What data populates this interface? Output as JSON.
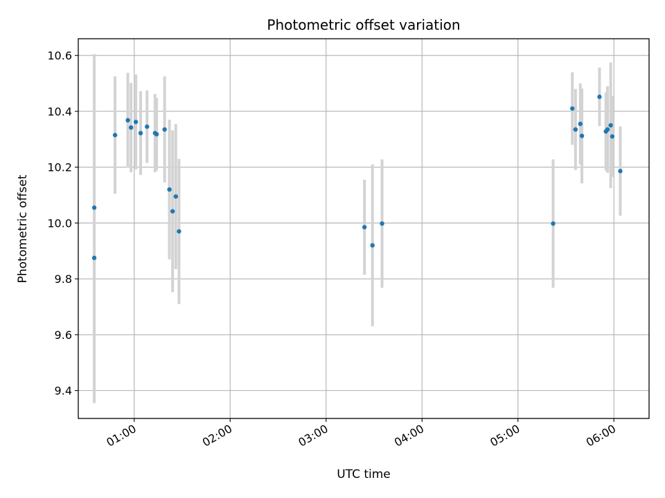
{
  "chart_data": {
    "type": "scatter",
    "title": "Photometric offset variation",
    "xlabel": "UTC time",
    "ylabel": "Photometric offset",
    "x_tick_labels": [
      "01:00",
      "02:00",
      "03:00",
      "04:00",
      "05:00",
      "06:00"
    ],
    "y_tick_labels": [
      "9.4",
      "9.6",
      "9.8",
      "10.0",
      "10.2",
      "10.4",
      "10.6"
    ],
    "x_ticks": [
      "01:00",
      "02:00",
      "03:00",
      "04:00",
      "05:00",
      "06:00"
    ],
    "y_ticks": [
      9.4,
      9.6,
      9.8,
      10.0,
      10.2,
      10.4,
      10.6
    ],
    "xlim": [
      "00:25",
      "06:22"
    ],
    "ylim": [
      9.3,
      10.66
    ],
    "grid": true,
    "marker_color": "#1f77b4",
    "errorbar_color": "#d3d3d3",
    "points": [
      {
        "x": "00:35",
        "y": 10.055,
        "err": 0.55
      },
      {
        "x": "00:35",
        "y": 9.875,
        "err": 0.52
      },
      {
        "x": "00:48",
        "y": 10.315,
        "err": 0.21
      },
      {
        "x": "00:56",
        "y": 10.368,
        "err": 0.17
      },
      {
        "x": "00:58",
        "y": 10.342,
        "err": 0.16
      },
      {
        "x": "01:01",
        "y": 10.362,
        "err": 0.17
      },
      {
        "x": "01:04",
        "y": 10.322,
        "err": 0.15
      },
      {
        "x": "01:08",
        "y": 10.345,
        "err": 0.13
      },
      {
        "x": "01:13",
        "y": 10.322,
        "err": 0.14
      },
      {
        "x": "01:14",
        "y": 10.318,
        "err": 0.13
      },
      {
        "x": "01:19",
        "y": 10.335,
        "err": 0.19
      },
      {
        "x": "01:22",
        "y": 10.12,
        "err": 0.25
      },
      {
        "x": "01:24",
        "y": 10.042,
        "err": 0.29
      },
      {
        "x": "01:26",
        "y": 10.095,
        "err": 0.26
      },
      {
        "x": "01:28",
        "y": 9.97,
        "err": 0.26
      },
      {
        "x": "03:24",
        "y": 9.985,
        "err": 0.17
      },
      {
        "x": "03:29",
        "y": 9.92,
        "err": 0.29
      },
      {
        "x": "03:35",
        "y": 9.998,
        "err": 0.23
      },
      {
        "x": "05:22",
        "y": 9.998,
        "err": 0.23
      },
      {
        "x": "05:34",
        "y": 10.41,
        "err": 0.13
      },
      {
        "x": "05:36",
        "y": 10.335,
        "err": 0.145
      },
      {
        "x": "05:39",
        "y": 10.355,
        "err": 0.145
      },
      {
        "x": "05:40",
        "y": 10.312,
        "err": 0.17
      },
      {
        "x": "05:51",
        "y": 10.452,
        "err": 0.105
      },
      {
        "x": "05:55",
        "y": 10.328,
        "err": 0.14
      },
      {
        "x": "05:56",
        "y": 10.335,
        "err": 0.155
      },
      {
        "x": "05:58",
        "y": 10.35,
        "err": 0.225
      },
      {
        "x": "05:59",
        "y": 10.31,
        "err": 0.145
      },
      {
        "x": "06:04",
        "y": 10.186,
        "err": 0.16
      }
    ]
  }
}
